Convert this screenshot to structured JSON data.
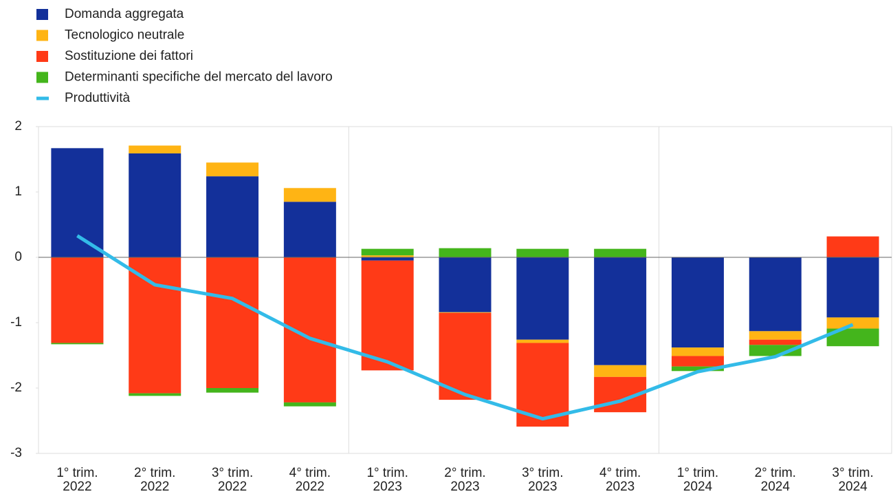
{
  "chart_data": {
    "type": "bar",
    "stacked": true,
    "categories": [
      "1° trim. 2022",
      "2° trim. 2022",
      "3° trim. 2022",
      "4° trim. 2022",
      "1° trim. 2023",
      "2° trim. 2023",
      "3° trim. 2023",
      "4° trim. 2023",
      "1° trim. 2024",
      "2° trim. 2024",
      "3° trim. 2024"
    ],
    "series": [
      {
        "name": "Domanda aggregata",
        "color": "#13309a",
        "values": [
          1.67,
          1.59,
          1.24,
          0.85,
          -0.05,
          -0.84,
          -1.26,
          -1.65,
          -1.38,
          -1.13,
          -0.92
        ]
      },
      {
        "name": "Tecnologico neutrale",
        "color": "#ffb414",
        "values": [
          0,
          0.12,
          0.21,
          0.21,
          0.03,
          -0.01,
          -0.05,
          -0.18,
          -0.13,
          -0.13,
          -0.17
        ]
      },
      {
        "name": "Sostituzione dei fattori",
        "color": "#ff3a17",
        "values": [
          -1.31,
          -2.08,
          -2.0,
          -2.22,
          -1.68,
          -1.33,
          -1.28,
          -0.54,
          -0.16,
          -0.08,
          0.32
        ]
      },
      {
        "name": "Determinanti specifiche del mercato del lavoro",
        "color": "#44b51c",
        "values": [
          -0.02,
          -0.04,
          -0.07,
          -0.06,
          0.1,
          0.14,
          0.13,
          0.13,
          -0.07,
          -0.17,
          -0.27
        ]
      },
      {
        "name": "Produttività",
        "type": "line",
        "color": "#33bbe8",
        "values": [
          0.33,
          -0.42,
          -0.63,
          -1.24,
          -1.6,
          -2.1,
          -2.47,
          -2.2,
          -1.75,
          -1.52,
          -1.03
        ]
      }
    ],
    "ylim": [
      -3,
      2
    ],
    "yticks": [
      -3,
      -2,
      -1,
      0,
      1,
      2
    ],
    "legend": "top-left"
  }
}
